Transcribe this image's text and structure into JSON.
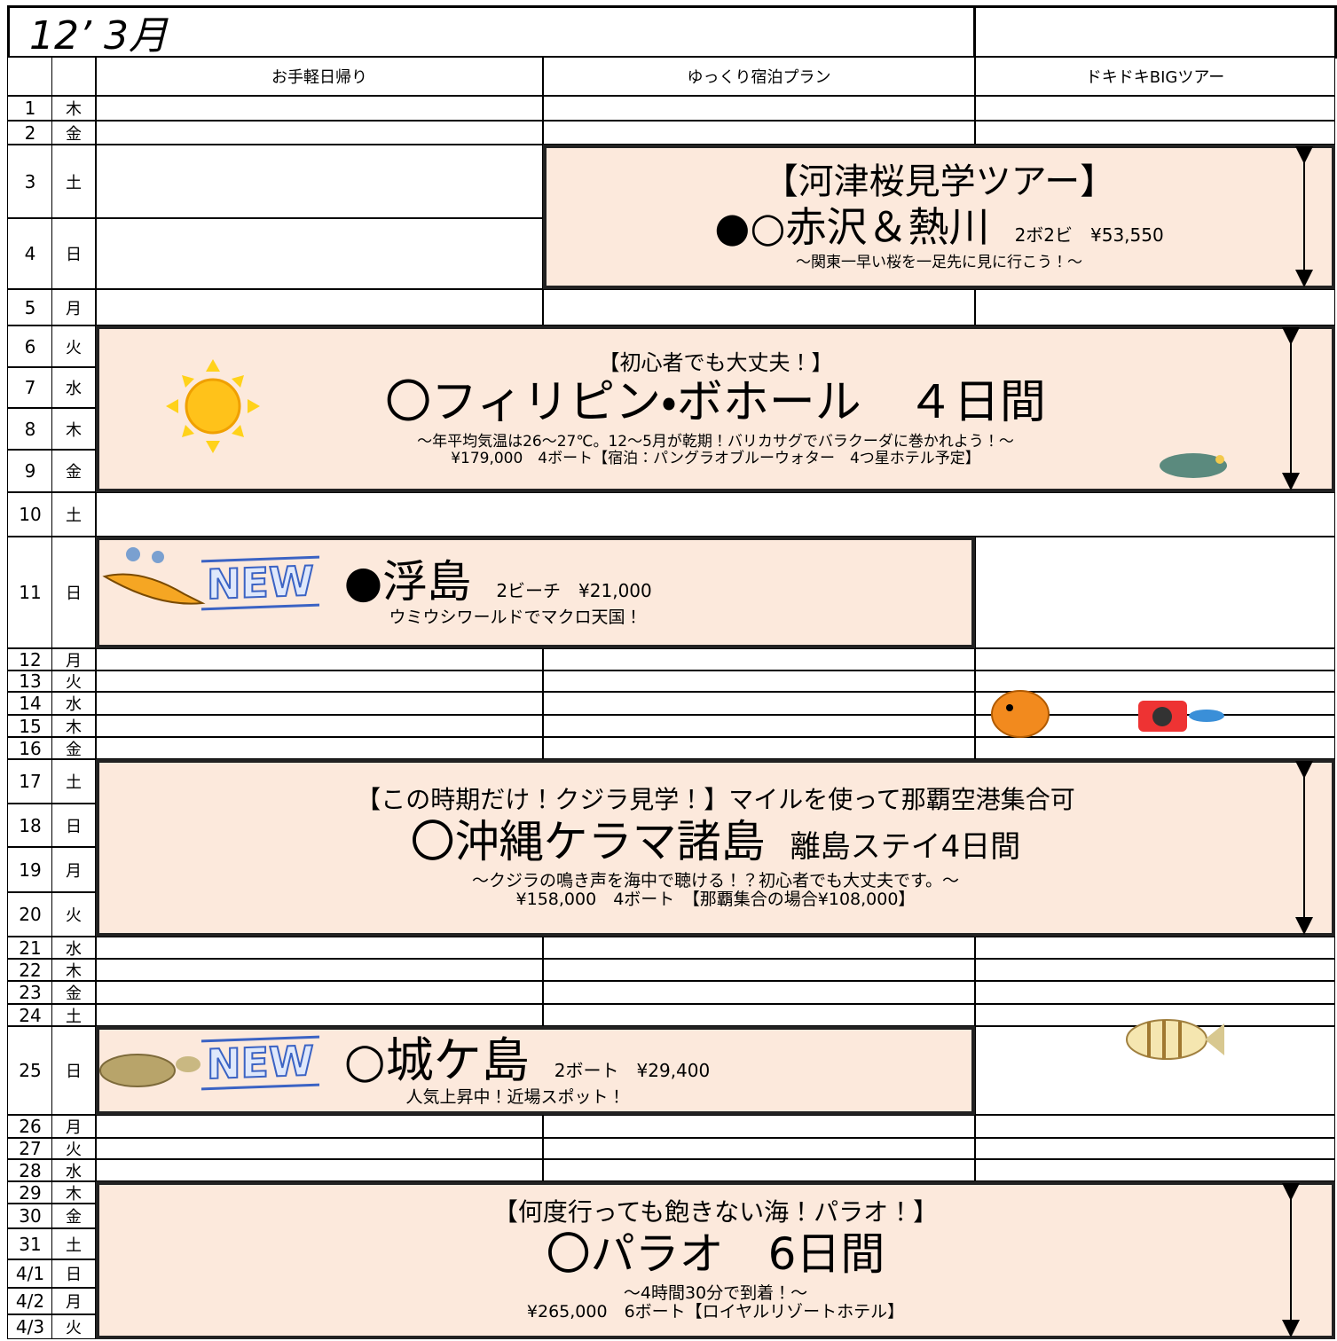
{
  "header": {
    "title": "12’ 3月",
    "columns": [
      "お手軽日帰り",
      "ゆっくり宿泊プラン",
      "ドキドキBIGツアー"
    ]
  },
  "days": [
    {
      "day": "1",
      "weekday": "木"
    },
    {
      "day": "2",
      "weekday": "金"
    },
    {
      "day": "3",
      "weekday": "土"
    },
    {
      "day": "4",
      "weekday": "日"
    },
    {
      "day": "5",
      "weekday": "月"
    },
    {
      "day": "6",
      "weekday": "火"
    },
    {
      "day": "7",
      "weekday": "水"
    },
    {
      "day": "8",
      "weekday": "木"
    },
    {
      "day": "9",
      "weekday": "金"
    },
    {
      "day": "10",
      "weekday": "土"
    },
    {
      "day": "11",
      "weekday": "日"
    },
    {
      "day": "12",
      "weekday": "月"
    },
    {
      "day": "13",
      "weekday": "火"
    },
    {
      "day": "14",
      "weekday": "水"
    },
    {
      "day": "15",
      "weekday": "木"
    },
    {
      "day": "16",
      "weekday": "金"
    },
    {
      "day": "17",
      "weekday": "土"
    },
    {
      "day": "18",
      "weekday": "日"
    },
    {
      "day": "19",
      "weekday": "月"
    },
    {
      "day": "20",
      "weekday": "火"
    },
    {
      "day": "21",
      "weekday": "水"
    },
    {
      "day": "22",
      "weekday": "木"
    },
    {
      "day": "23",
      "weekday": "金"
    },
    {
      "day": "24",
      "weekday": "土"
    },
    {
      "day": "25",
      "weekday": "日"
    },
    {
      "day": "26",
      "weekday": "月"
    },
    {
      "day": "27",
      "weekday": "火"
    },
    {
      "day": "28",
      "weekday": "水"
    },
    {
      "day": "29",
      "weekday": "木"
    },
    {
      "day": "30",
      "weekday": "金"
    },
    {
      "day": "31",
      "weekday": "土"
    },
    {
      "day": "4/1",
      "weekday": "日"
    },
    {
      "day": "4/2",
      "weekday": "月"
    },
    {
      "day": "4/3",
      "weekday": "火"
    }
  ],
  "events": [
    {
      "heading": "【河津桜見学ツアー】",
      "name": "●○赤沢＆熱川",
      "detail": "2ボ2ビ　¥53,550",
      "lines": [
        "～関東一早い桜を一足先に見に行こう！～"
      ]
    },
    {
      "heading": "【初心者でも大丈夫！】",
      "name": "〇フィリピン・ボホール　４日間",
      "lines": [
        "～年平均気温は26～27℃。12～5月が乾期！バリカサグでバラクーダに巻かれよう！～",
        "¥179,000　4ボート【宿泊：パングラオブルーウォター　4つ星ホテル予定】"
      ]
    },
    {
      "badge": "NEW",
      "name": "●浮島",
      "detail": "2ビーチ　¥21,000",
      "lines": [
        "ウミウシワールドでマクロ天国！"
      ]
    },
    {
      "heading": "【この時期だけ！クジラ見学！】マイルを使って那覇空港集合可",
      "name": "〇沖縄ケラマ諸島",
      "detail": "離島ステイ4日間",
      "lines": [
        "～クジラの鳴き声を海中で聴ける！？初心者でも大丈夫です。～",
        "¥158,000　4ボート　【那覇集合の場合¥108,000】"
      ]
    },
    {
      "badge": "NEW",
      "name": "○城ケ島",
      "detail": "2ボート　¥29,400",
      "lines": [
        "人気上昇中！近場スポット！"
      ]
    },
    {
      "heading": "【何度行っても飽きない海！パラオ！】",
      "name": "〇パラオ　6日間",
      "lines": [
        "～4時間30分で到着！～",
        "¥265,000　6ボート【ロイヤルリゾートホテル】"
      ]
    }
  ]
}
